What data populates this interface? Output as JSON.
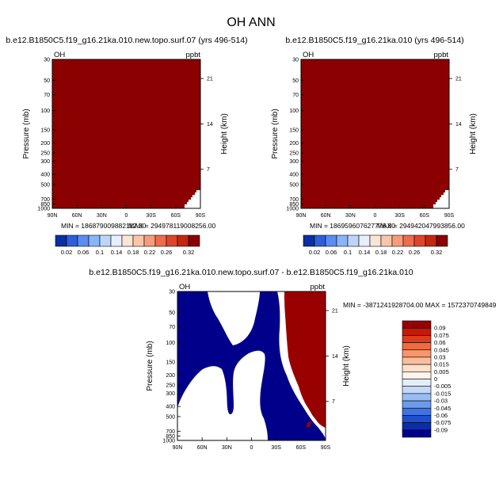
{
  "figure": {
    "title": "OH ANN"
  },
  "colors": {
    "background": "#ffffff",
    "frame": "#000000",
    "field_high": "#8b0000",
    "diff_positive": "#990000",
    "diff_negative": "#00008b"
  },
  "chart_data": [
    {
      "type": "heatmap",
      "title": "b.e12.B1850C5.f19_g16.21ka.010.new.topo.surf.07 (yrs 496-514)",
      "variable": "OH",
      "units": "ppbt",
      "ylabel": "Pressure (mb)",
      "ylabel_right": "Height (km)",
      "x_ticks": [
        "90N",
        "60N",
        "30N",
        "0",
        "30S",
        "60S",
        "90S"
      ],
      "y_ticks": [
        "30",
        "50",
        "70",
        "100",
        "150",
        "200",
        "250",
        "300",
        "400",
        "500",
        "700",
        "850",
        "1000"
      ],
      "y_ticks_right": [
        "21",
        "14",
        "7"
      ],
      "min_label": "MIN = 186879009882112.00",
      "max_label": "MAX = 294978119008256.00",
      "colorbar_levels": [
        "0.02",
        "0.06",
        "0.1",
        "0.14",
        "0.18",
        "0.22",
        "0.26",
        "0.32"
      ],
      "fill": "saturated above top contour level (0.32) everywhere except near-surface high southern latitudes"
    },
    {
      "type": "heatmap",
      "title": "b.e12.B1850C5.f19_g16.21ka.010 (yrs 496-514)",
      "variable": "OH",
      "units": "ppbt",
      "ylabel": "Pressure (mb)",
      "ylabel_right": "Height (km)",
      "x_ticks": [
        "90N",
        "60N",
        "30N",
        "0",
        "30S",
        "60S",
        "90S"
      ],
      "y_ticks": [
        "30",
        "50",
        "70",
        "100",
        "150",
        "200",
        "250",
        "300",
        "400",
        "500",
        "700",
        "850",
        "1000"
      ],
      "y_ticks_right": [
        "21",
        "14",
        "7"
      ],
      "min_label": "MIN = 186959607627776.00",
      "max_label": "MAX = 294942047993856.00",
      "colorbar_levels": [
        "0.02",
        "0.06",
        "0.1",
        "0.14",
        "0.18",
        "0.22",
        "0.26",
        "0.32"
      ],
      "fill": "saturated above top contour level (0.32) everywhere except near-surface high southern latitudes"
    },
    {
      "type": "heatmap",
      "title": "b.e12.B1850C5.f19_g16.21ka.010.new.topo.surf.07 - b.e12.B1850C5.f19_g16.21ka.010",
      "variable": "OH",
      "units": "ppbt",
      "ylabel": "Pressure (mb)",
      "ylabel_right": "Height (km)",
      "x_ticks": [
        "90N",
        "60N",
        "30N",
        "0",
        "30S",
        "60S",
        "90S"
      ],
      "y_ticks": [
        "30",
        "50",
        "70",
        "100",
        "150",
        "200",
        "250",
        "300",
        "400",
        "500",
        "700",
        "850",
        "1000"
      ],
      "y_ticks_right": [
        "21",
        "14",
        "7"
      ],
      "minmax_label": "MIN = -3871241928704.00  MAX = 1572370749849",
      "colorbar_levels": [
        "0.09",
        "0.075",
        "0.06",
        "0.045",
        "0.03",
        "0.015",
        "0.005",
        "0",
        "-0.005",
        "-0.015",
        "-0.03",
        "-0.045",
        "-0.06",
        "-0.075",
        "-0.09"
      ],
      "fill": "strong negative over tropics/NH lower troposphere, strong positive poleward of ~50S, white elsewhere"
    }
  ]
}
